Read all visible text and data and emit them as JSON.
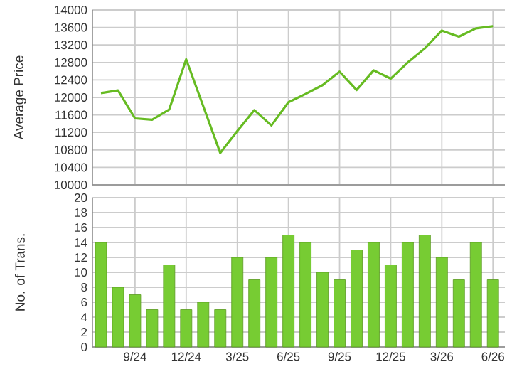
{
  "chart_data": [
    {
      "type": "line",
      "ylabel": "Average Price",
      "categories": [
        null,
        null,
        null,
        null,
        null,
        null,
        null,
        null,
        null,
        null,
        null,
        null,
        null,
        null,
        null,
        null,
        null,
        null,
        null,
        null,
        null,
        null,
        null,
        null
      ],
      "series": [
        {
          "color": "#66bb22",
          "values": [
            12100,
            12160,
            11520,
            11490,
            11720,
            12870,
            11800,
            10730,
            11230,
            11710,
            11360,
            11890,
            12080,
            12280,
            12590,
            12170,
            12620,
            12430,
            12800,
            13120,
            13530,
            13390,
            13580,
            13630
          ]
        }
      ],
      "ylim": [
        10000,
        14000
      ],
      "yticks": [
        10000,
        10400,
        10800,
        11200,
        11600,
        12000,
        12400,
        12800,
        13200,
        13600,
        14000
      ],
      "grid": true,
      "tick_labels": "y",
      "marker": "none",
      "line_style": "solid"
    },
    {
      "type": "bar",
      "ylabel": "No. of Trans.",
      "categories": [
        null,
        null,
        "9/24",
        null,
        null,
        "12/24",
        null,
        null,
        "3/25",
        null,
        null,
        "6/25",
        null,
        null,
        "9/25",
        null,
        null,
        "12/25",
        null,
        null,
        "3/26",
        null,
        null,
        "6/26"
      ],
      "series": [
        {
          "color": "#77cc33",
          "values": [
            14,
            8,
            7,
            5,
            11,
            5,
            6,
            5,
            12,
            9,
            12,
            15,
            14,
            10,
            9,
            13,
            14,
            11,
            14,
            15,
            12,
            9,
            14,
            9
          ]
        }
      ],
      "ylim": [
        0,
        20
      ],
      "yticks": [
        0,
        2,
        4,
        6,
        8,
        10,
        12,
        14,
        16,
        18,
        20
      ],
      "grid": true
    }
  ]
}
